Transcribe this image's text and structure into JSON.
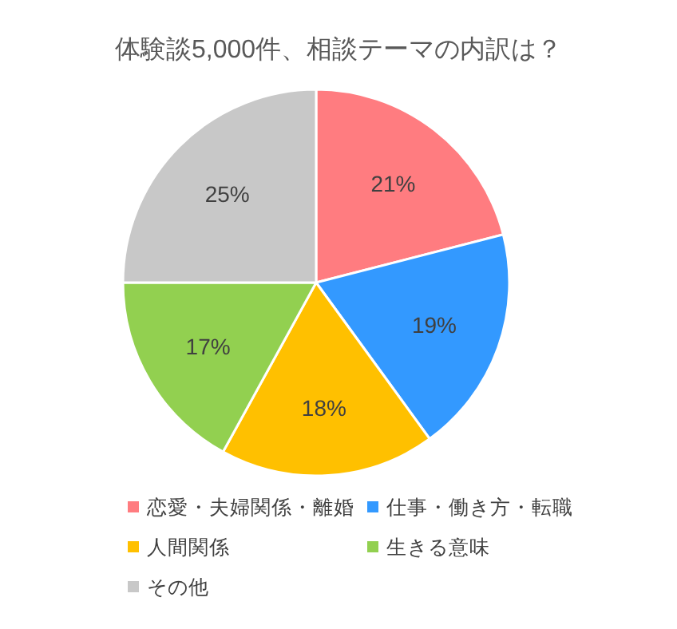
{
  "chart_data": {
    "type": "pie",
    "title": "体験談5,000件、相談テーマの内訳は？",
    "categories": [
      "恋愛・夫婦関係・離婚",
      "仕事・働き方・転職",
      "人間関係",
      "生きる意味",
      "その他"
    ],
    "values": [
      21,
      19,
      18,
      17,
      25
    ],
    "value_labels": [
      "21%",
      "19%",
      "18%",
      "17%",
      "25%"
    ],
    "colors": [
      "#ff7c80",
      "#3399ff",
      "#ffc000",
      "#92d050",
      "#c8c8c8"
    ],
    "legend": "bottom"
  }
}
